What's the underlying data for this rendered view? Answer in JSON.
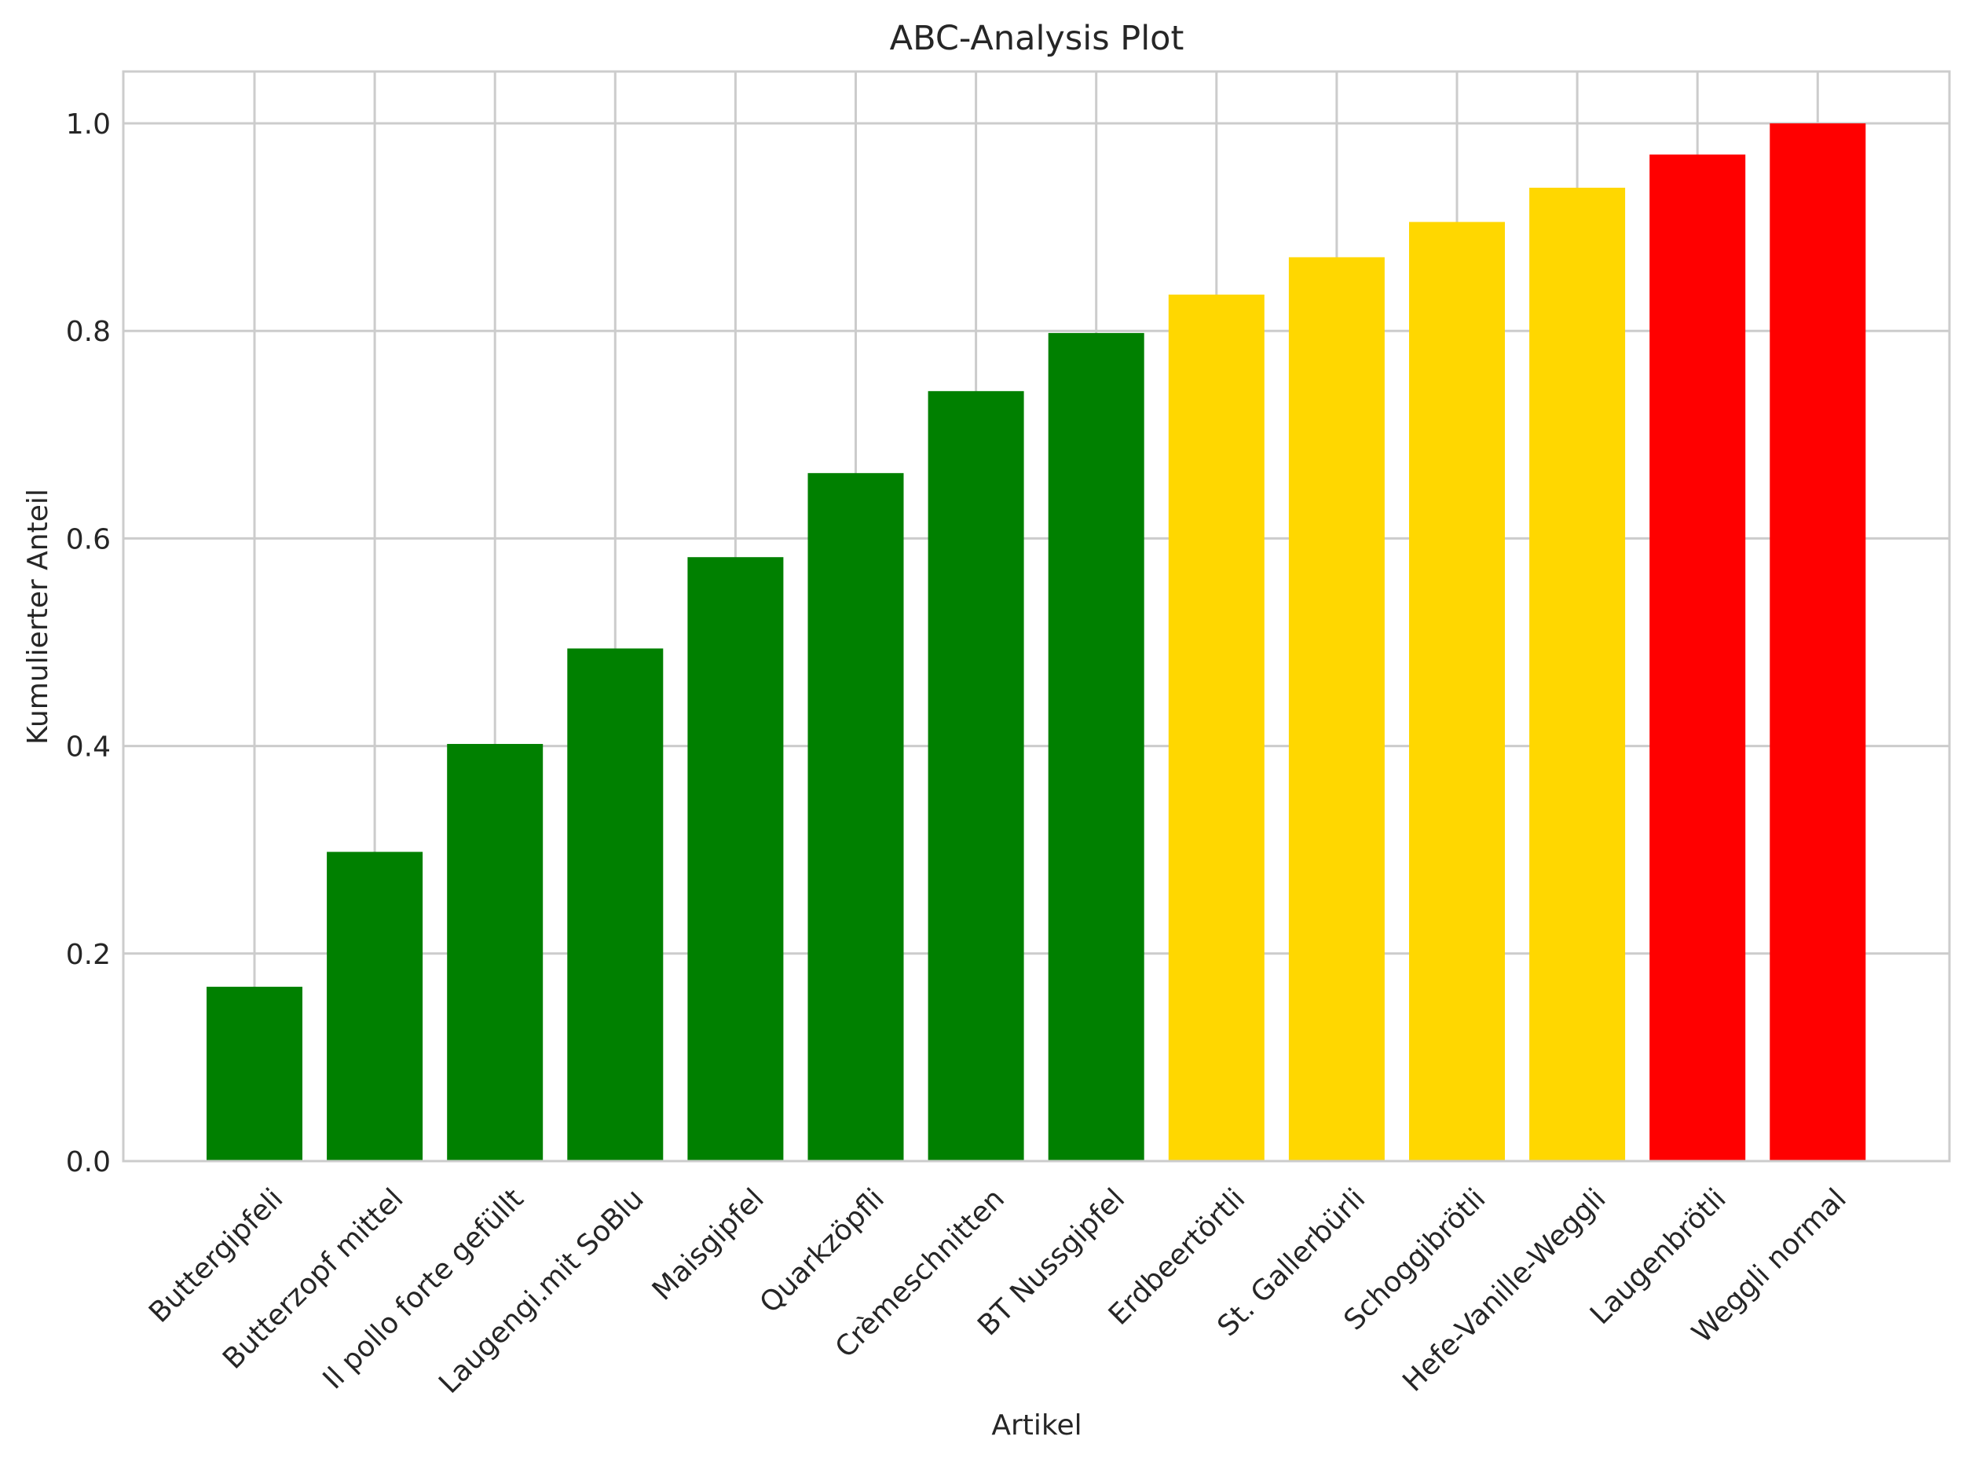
{
  "chart_data": {
    "type": "bar",
    "title": "ABC-Analysis Plot",
    "xlabel": "Artikel",
    "ylabel": "Kumulierter Anteil",
    "ylim": [
      0,
      1.05
    ],
    "yticks": [
      "0.0",
      "0.2",
      "0.4",
      "0.6",
      "0.8",
      "1.0"
    ],
    "grid": true,
    "legend": false,
    "categories": [
      "Buttergipfeli",
      "Butterzopf mittel",
      "Il pollo forte gefüllt",
      "Laugengi.mit SoBlu",
      "Maisgipfel",
      "Quarkzöpfli",
      "Crèmeschnitten",
      "BT Nussgipfel",
      "Erdbeertörtli",
      "St. Gallerbürli",
      "Schoggibrötli",
      "Hefe-Vanille-Weggli",
      "Laugenbrötli",
      "Weggli normal"
    ],
    "values": [
      0.168,
      0.298,
      0.402,
      0.494,
      0.582,
      0.663,
      0.742,
      0.798,
      0.835,
      0.871,
      0.905,
      0.938,
      0.97,
      1.0
    ],
    "bar_colors": [
      "#008000",
      "#008000",
      "#008000",
      "#008000",
      "#008000",
      "#008000",
      "#008000",
      "#008000",
      "#FFD700",
      "#FFD700",
      "#FFD700",
      "#FFD700",
      "#FF0000",
      "#FF0000"
    ],
    "grid_color": "#cccccc"
  }
}
